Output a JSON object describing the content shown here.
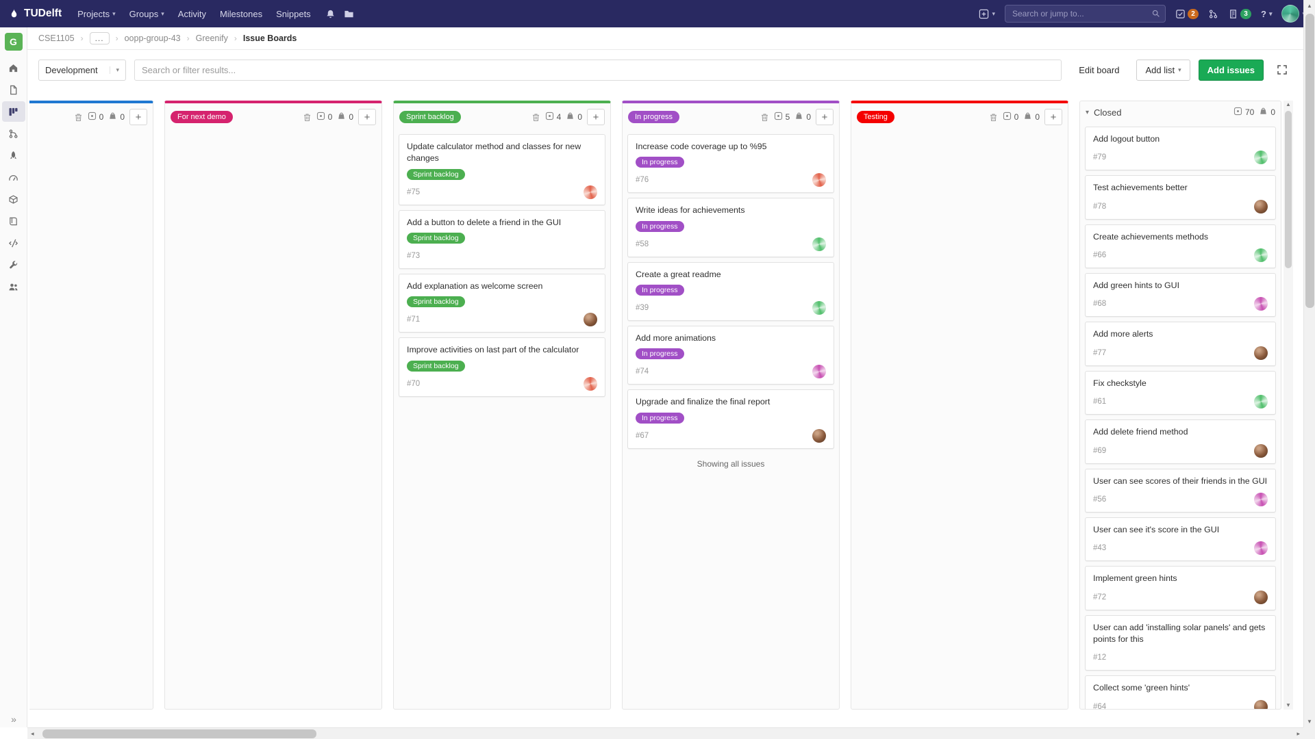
{
  "navbar": {
    "logo_text": "TUDelft",
    "menu": [
      {
        "label": "Projects",
        "caret": true
      },
      {
        "label": "Groups",
        "caret": true
      },
      {
        "label": "Activity",
        "caret": false
      },
      {
        "label": "Milestones",
        "caret": false
      },
      {
        "label": "Snippets",
        "caret": false
      }
    ],
    "search_placeholder": "Search or jump to...",
    "issues_badge": "2",
    "todos_badge": "3",
    "badge_colors": {
      "issues": "#cb6a1d",
      "todos": "#2da160"
    },
    "help_label": "?"
  },
  "breadcrumb": {
    "items": [
      {
        "label": "CSE1105"
      },
      {
        "label": "...",
        "collapsed": true
      },
      {
        "label": "oopp-group-43"
      },
      {
        "label": "Greenify"
      },
      {
        "label": "Issue Boards",
        "current": true
      }
    ]
  },
  "sidebar": {
    "project_initial": "G",
    "items": [
      {
        "name": "project-overview",
        "icon": "home"
      },
      {
        "name": "repository",
        "icon": "file"
      },
      {
        "name": "issue-boards",
        "icon": "board",
        "active": true
      },
      {
        "name": "merge-requests",
        "icon": "merge"
      },
      {
        "name": "ci-cd",
        "icon": "rocket"
      },
      {
        "name": "operations",
        "icon": "gauge"
      },
      {
        "name": "packages",
        "icon": "package"
      },
      {
        "name": "wiki",
        "icon": "book"
      },
      {
        "name": "snippets",
        "icon": "snippet"
      },
      {
        "name": "settings",
        "icon": "wrench"
      },
      {
        "name": "members",
        "icon": "users"
      }
    ],
    "collapse_toggle": "»"
  },
  "filter_bar": {
    "board_selector_value": "Development",
    "search_placeholder": "Search or filter results...",
    "edit_board_label": "Edit board",
    "add_list_label": "Add list",
    "add_issues_label": "Add issues",
    "add_issues_color": "#1aaa55"
  },
  "board": {
    "footer_note": "Showing all issues",
    "lists": [
      {
        "label": "",
        "color": "#1f78d1",
        "issue_count": "0",
        "weight": "0",
        "clipped": true,
        "cards": []
      },
      {
        "label": "For next demo",
        "color": "#d5236e",
        "issue_count": "0",
        "weight": "0",
        "cards": []
      },
      {
        "label": "Sprint backlog",
        "color": "#4caf50",
        "issue_count": "4",
        "weight": "0",
        "cards": [
          {
            "title": "Update calculator method and classes for new changes",
            "label": "Sprint backlog",
            "id": "#75",
            "avatar": "id-orange"
          },
          {
            "title": "Add a button to delete a friend in the GUI",
            "label": "Sprint backlog",
            "id": "#73",
            "avatar": null
          },
          {
            "title": "Add explanation as welcome screen",
            "label": "Sprint backlog",
            "id": "#71",
            "avatar": "photo"
          },
          {
            "title": "Improve activities on last part of the calculator",
            "label": "Sprint backlog",
            "id": "#70",
            "avatar": "id-orange"
          }
        ]
      },
      {
        "label": "In progress",
        "color": "#a14fc6",
        "issue_count": "5",
        "weight": "0",
        "show_footer": true,
        "cards": [
          {
            "title": "Increase code coverage up to %95",
            "label": "In progress",
            "id": "#76",
            "avatar": "id-orange"
          },
          {
            "title": "Write ideas for achievements",
            "label": "In progress",
            "id": "#58",
            "avatar": "id-green"
          },
          {
            "title": "Create a great readme",
            "label": "In progress",
            "id": "#39",
            "avatar": "id-green"
          },
          {
            "title": "Add more animations",
            "label": "In progress",
            "id": "#74",
            "avatar": "id-magenta"
          },
          {
            "title": "Upgrade and finalize the final report",
            "label": "In progress",
            "id": "#67",
            "avatar": "photo"
          }
        ]
      },
      {
        "label": "Testing",
        "color": "#f40000",
        "issue_count": "0",
        "weight": "0",
        "cards": []
      },
      {
        "label": "Closed",
        "color": null,
        "closed": true,
        "issue_count": "70",
        "weight": "0",
        "has_scrollbar": true,
        "partial_card": true,
        "cards": [
          {
            "title": "Add logout button",
            "id": "#79",
            "avatar": "id-green"
          },
          {
            "title": "Test achievements better",
            "id": "#78",
            "avatar": "photo"
          },
          {
            "title": "Create achievements methods",
            "id": "#66",
            "avatar": "id-green"
          },
          {
            "title": "Add green hints to GUI",
            "id": "#68",
            "avatar": "id-magenta"
          },
          {
            "title": "Add more alerts",
            "id": "#77",
            "avatar": "photo"
          },
          {
            "title": "Fix checkstyle",
            "id": "#61",
            "avatar": "id-green"
          },
          {
            "title": "Add delete friend method",
            "id": "#69",
            "avatar": "photo"
          },
          {
            "title": "User can see scores of their friends in the GUI",
            "id": "#56",
            "avatar": "id-magenta"
          },
          {
            "title": "User can see it's score in the GUI",
            "id": "#43",
            "avatar": "id-magenta"
          },
          {
            "title": "Implement green hints",
            "id": "#72",
            "avatar": "photo"
          },
          {
            "title": "User can add 'installing solar panels' and gets points for this",
            "id": "#12",
            "avatar": null
          },
          {
            "title": "Collect some 'green hints'",
            "id": "#64",
            "avatar": "photo"
          }
        ]
      }
    ]
  },
  "icons": {
    "caret_down": "▾",
    "breadcrumb_separator": "›",
    "add_plus": "+",
    "closed_chevron": "▾",
    "sidebar_expand": "»",
    "scroll_up": "▲",
    "scroll_down": "▼",
    "scroll_left": "◂",
    "scroll_right": "▸"
  }
}
